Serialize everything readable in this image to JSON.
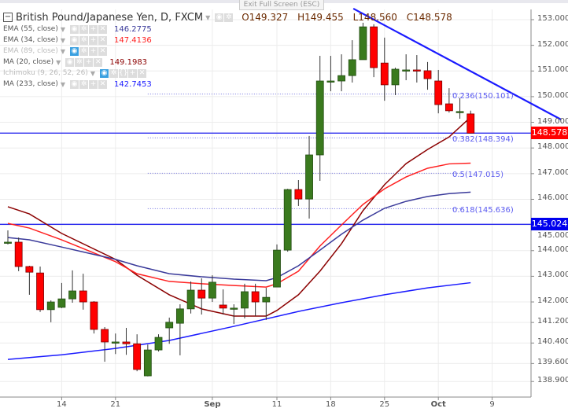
{
  "header": {
    "title": "British Pound/Japanese Yen, D, FXCM",
    "exit_fullscreen": "Exit Full Screen (ESC)",
    "ohlc": {
      "open": "O149.327",
      "high": "H149.455",
      "low": "L148.560",
      "close": "C148.578"
    }
  },
  "indicators": [
    {
      "label": "EMA (55, close)",
      "value": "146.2775",
      "color": "#3a3a9a",
      "visible": true
    },
    {
      "label": "EMA (34, close)",
      "value": "147.4136",
      "color": "#ff2020",
      "visible": true
    },
    {
      "label": "EMA (89, close)",
      "value": "",
      "color": "#bbbbbb",
      "visible": false
    },
    {
      "label": "MA (20, close)",
      "value": "149.1983",
      "color": "#8b0000",
      "visible": true
    },
    {
      "label": "Ichimoku (9, 26, 52, 26)",
      "value": "",
      "color": "#bbbbbb",
      "visible": false
    },
    {
      "label": "MA (233, close)",
      "value": "142.7453",
      "color": "#1a1aff",
      "visible": true
    }
  ],
  "chart_data": {
    "type": "candlestick",
    "ylim": [
      138.9,
      153.3
    ],
    "y_ticks": [
      "153.000",
      "152.000",
      "151.000",
      "150.000",
      "149.000",
      "148.000",
      "147.000",
      "146.000",
      "145.000",
      "144.000",
      "143.000",
      "142.000",
      "141.200",
      "140.400",
      "139.600",
      "138.900"
    ],
    "x_ticks": [
      {
        "label": "14",
        "index": 6
      },
      {
        "label": "21",
        "index": 11
      },
      {
        "label": "Sep",
        "index": 20
      },
      {
        "label": "11",
        "index": 26
      },
      {
        "label": "18",
        "index": 31
      },
      {
        "label": "25",
        "index": 36
      },
      {
        "label": "Oct",
        "index": 41
      },
      {
        "label": "9",
        "index": 46
      }
    ],
    "candles": [
      [
        144.3,
        144.79,
        144.24,
        144.33
      ],
      [
        144.33,
        144.51,
        143.2,
        143.38
      ],
      [
        143.38,
        143.41,
        142.28,
        143.16
      ],
      [
        143.13,
        143.38,
        141.61,
        141.7
      ],
      [
        141.7,
        142.06,
        141.21,
        142.0
      ],
      [
        141.79,
        142.74,
        141.76,
        142.12
      ],
      [
        142.12,
        143.23,
        141.97,
        142.43
      ],
      [
        142.43,
        143.1,
        141.7,
        142.0
      ],
      [
        142.0,
        142.03,
        140.77,
        140.93
      ],
      [
        140.93,
        141.02,
        139.67,
        140.44
      ],
      [
        140.44,
        140.77,
        139.97,
        140.44
      ],
      [
        140.44,
        140.99,
        139.94,
        140.37
      ],
      [
        140.37,
        140.74,
        139.3,
        139.37
      ],
      [
        139.12,
        140.34,
        139.1,
        140.13
      ],
      [
        140.13,
        140.74,
        140.07,
        140.62
      ],
      [
        140.99,
        141.39,
        140.37,
        141.21
      ],
      [
        141.17,
        141.91,
        139.92,
        141.73
      ],
      [
        141.73,
        142.8,
        141.55,
        142.46
      ],
      [
        142.46,
        142.92,
        141.51,
        142.15
      ],
      [
        142.15,
        143.04,
        142.0,
        142.77
      ],
      [
        141.88,
        142.49,
        141.51,
        141.76
      ],
      [
        141.76,
        141.91,
        141.14,
        141.76
      ],
      [
        141.76,
        142.71,
        141.36,
        142.4
      ],
      [
        142.4,
        142.71,
        141.45,
        142.0
      ],
      [
        142.0,
        142.55,
        141.3,
        142.18
      ],
      [
        142.58,
        144.24,
        142.58,
        144.02
      ],
      [
        144.02,
        146.41,
        143.96,
        146.38
      ],
      [
        146.38,
        146.75,
        145.74,
        146.01
      ],
      [
        146.01,
        148.47,
        145.25,
        147.73
      ],
      [
        147.73,
        151.59,
        146.72,
        150.61
      ],
      [
        150.58,
        151.59,
        150.21,
        150.61
      ],
      [
        150.61,
        151.65,
        150.21,
        150.82
      ],
      [
        150.82,
        152.2,
        150.55,
        151.44
      ],
      [
        151.44,
        152.88,
        151.44,
        152.72
      ],
      [
        152.72,
        152.82,
        150.76,
        151.13
      ],
      [
        151.31,
        152.3,
        149.84,
        150.46
      ],
      [
        150.46,
        151.13,
        150.06,
        151.07
      ],
      [
        151.04,
        151.65,
        150.64,
        151.04
      ],
      [
        151.04,
        151.62,
        150.55,
        151.01
      ],
      [
        151.01,
        151.35,
        150.27,
        150.7
      ],
      [
        150.61,
        151.04,
        149.35,
        149.69
      ],
      [
        149.72,
        150.33,
        149.38,
        149.45
      ],
      [
        149.42,
        149.94,
        149.14,
        149.42
      ],
      [
        149.327,
        149.455,
        148.56,
        148.578
      ]
    ],
    "series": [
      {
        "name": "MA (20, close)",
        "color": "#8b0000",
        "points": [
          [
            1,
            145.71
          ],
          [
            3,
            145.43
          ],
          [
            6,
            144.67
          ],
          [
            11,
            143.66
          ],
          [
            13,
            143.04
          ],
          [
            16,
            142.28
          ],
          [
            19,
            141.73
          ],
          [
            22,
            141.45
          ],
          [
            25,
            141.45
          ],
          [
            26,
            141.67
          ],
          [
            28,
            142.28
          ],
          [
            30,
            143.2
          ],
          [
            32,
            144.27
          ],
          [
            34,
            145.56
          ],
          [
            36,
            146.57
          ],
          [
            38,
            147.39
          ],
          [
            40,
            147.94
          ],
          [
            42,
            148.43
          ],
          [
            44,
            149.2
          ]
        ]
      },
      {
        "name": "EMA (34, close)",
        "color": "#ff2020",
        "points": [
          [
            1,
            145.06
          ],
          [
            3,
            144.88
          ],
          [
            6,
            144.42
          ],
          [
            11,
            143.57
          ],
          [
            13,
            143.1
          ],
          [
            16,
            142.8
          ],
          [
            19,
            142.71
          ],
          [
            22,
            142.64
          ],
          [
            25,
            142.58
          ],
          [
            26,
            142.71
          ],
          [
            28,
            143.2
          ],
          [
            30,
            144.18
          ],
          [
            32,
            145.0
          ],
          [
            34,
            145.8
          ],
          [
            36,
            146.41
          ],
          [
            38,
            146.87
          ],
          [
            40,
            147.21
          ],
          [
            42,
            147.38
          ],
          [
            44,
            147.41
          ]
        ]
      },
      {
        "name": "EMA (55, close)",
        "color": "#3a3a9a",
        "points": [
          [
            1,
            144.51
          ],
          [
            3,
            144.42
          ],
          [
            6,
            144.14
          ],
          [
            11,
            143.66
          ],
          [
            13,
            143.41
          ],
          [
            16,
            143.1
          ],
          [
            19,
            142.98
          ],
          [
            22,
            142.89
          ],
          [
            25,
            142.83
          ],
          [
            26,
            142.95
          ],
          [
            28,
            143.41
          ],
          [
            30,
            144.02
          ],
          [
            32,
            144.64
          ],
          [
            34,
            145.19
          ],
          [
            36,
            145.65
          ],
          [
            38,
            145.92
          ],
          [
            40,
            146.11
          ],
          [
            42,
            146.22
          ],
          [
            44,
            146.28
          ]
        ]
      },
      {
        "name": "MA (233, close)",
        "color": "#1a1aff",
        "points": [
          [
            1,
            139.76
          ],
          [
            6,
            139.94
          ],
          [
            11,
            140.19
          ],
          [
            16,
            140.5
          ],
          [
            22,
            141.05
          ],
          [
            28,
            141.63
          ],
          [
            32,
            141.97
          ],
          [
            36,
            142.28
          ],
          [
            40,
            142.55
          ],
          [
            44,
            142.75
          ]
        ]
      }
    ],
    "trendline": {
      "color": "#1a1aff",
      "points": [
        [
          33.1,
          153.43
        ],
        [
          52.4,
          149.11
        ]
      ]
    },
    "horizontal_lines": [
      {
        "price": 148.578,
        "label": "148.578",
        "label_color": "#ff0000"
      },
      {
        "price": 145.024,
        "label": "145.024",
        "label_color": "#0000ee"
      }
    ],
    "fib_levels": [
      {
        "label": "0.236(150.101)",
        "price": 150.101
      },
      {
        "label": "0.382(148.394)",
        "price": 148.394
      },
      {
        "label": "0.5(147.015)",
        "price": 147.015
      },
      {
        "label": "0.618(145.636)",
        "price": 145.636
      }
    ],
    "fib_range": [
      14,
      43
    ],
    "colors": {
      "up": "#3a7a1e",
      "down": "#ff0000"
    }
  }
}
